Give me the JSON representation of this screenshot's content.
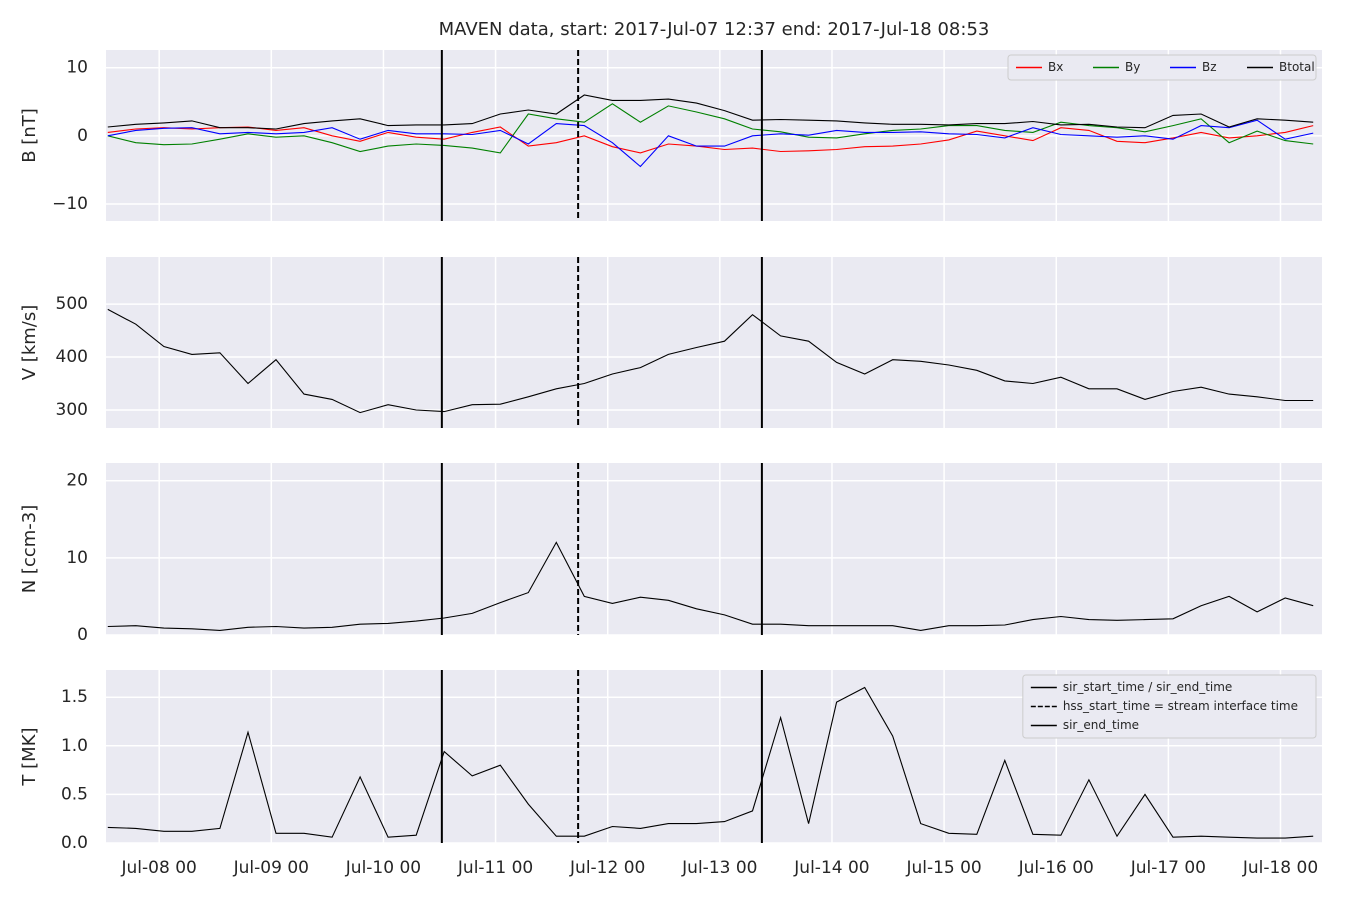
{
  "chart_data": {
    "type": "line",
    "title": "MAVEN data, start: 2017-Jul-07 12:37  end: 2017-Jul-18 08:53",
    "xlim": [
      "2017-07-07 12:37",
      "2017-07-18 08:53"
    ],
    "xticks": [
      {
        "value": "2017-07-08 00:00",
        "label": "Jul-08 00"
      },
      {
        "value": "2017-07-09 00:00",
        "label": "Jul-09 00"
      },
      {
        "value": "2017-07-10 00:00",
        "label": "Jul-10 00"
      },
      {
        "value": "2017-07-11 00:00",
        "label": "Jul-11 00"
      },
      {
        "value": "2017-07-12 00:00",
        "label": "Jul-12 00"
      },
      {
        "value": "2017-07-13 00:00",
        "label": "Jul-13 00"
      },
      {
        "value": "2017-07-14 00:00",
        "label": "Jul-14 00"
      },
      {
        "value": "2017-07-15 00:00",
        "label": "Jul-15 00"
      },
      {
        "value": "2017-07-16 00:00",
        "label": "Jul-16 00"
      },
      {
        "value": "2017-07-17 00:00",
        "label": "Jul-17 00"
      },
      {
        "value": "2017-07-18 00:00",
        "label": "Jul-18 00"
      }
    ],
    "grid": true,
    "x": [
      "2017-07-07 13:00",
      "2017-07-07 19:00",
      "2017-07-08 01:00",
      "2017-07-08 07:00",
      "2017-07-08 13:00",
      "2017-07-08 19:00",
      "2017-07-09 01:00",
      "2017-07-09 07:00",
      "2017-07-09 13:00",
      "2017-07-09 19:00",
      "2017-07-10 01:00",
      "2017-07-10 07:00",
      "2017-07-10 13:00",
      "2017-07-10 19:00",
      "2017-07-11 01:00",
      "2017-07-11 07:00",
      "2017-07-11 13:00",
      "2017-07-11 19:00",
      "2017-07-12 01:00",
      "2017-07-12 07:00",
      "2017-07-12 13:00",
      "2017-07-12 19:00",
      "2017-07-13 01:00",
      "2017-07-13 07:00",
      "2017-07-13 13:00",
      "2017-07-13 19:00",
      "2017-07-14 01:00",
      "2017-07-14 07:00",
      "2017-07-14 13:00",
      "2017-07-14 19:00",
      "2017-07-15 01:00",
      "2017-07-15 07:00",
      "2017-07-15 13:00",
      "2017-07-15 19:00",
      "2017-07-16 01:00",
      "2017-07-16 07:00",
      "2017-07-16 13:00",
      "2017-07-16 19:00",
      "2017-07-17 01:00",
      "2017-07-17 07:00",
      "2017-07-17 13:00",
      "2017-07-17 19:00",
      "2017-07-18 01:00",
      "2017-07-18 07:00"
    ],
    "vlines": [
      {
        "label": "sir_start_time / sir_end_time",
        "x": "2017-07-10 12:30",
        "color": "#000000",
        "dashed": false
      },
      {
        "label": "hss_start_time = stream interface time",
        "x": "2017-07-11 17:40",
        "color": "#000000",
        "dashed": true
      },
      {
        "label": "sir_end_time",
        "x": "2017-07-13 09:00",
        "color": "#000000",
        "dashed": false
      }
    ],
    "panels": [
      {
        "ylabel": "B [nT]",
        "ylim": [
          -12.5,
          12.6
        ],
        "yticks": [
          {
            "value": -10,
            "label": "−10"
          },
          0,
          10
        ],
        "legend": "upper right",
        "legend_columns": 4,
        "series": [
          {
            "name": "Bx",
            "color": "#ff0000",
            "values": [
              0.5,
              1,
              1.2,
              1,
              1.2,
              1.3,
              0.8,
              1.2,
              0,
              -0.8,
              0.5,
              -0.2,
              -0.5,
              0.5,
              1.3,
              -1.5,
              -1,
              0,
              -1.6,
              -2.5,
              -1.2,
              -1.5,
              -2,
              -1.8,
              -2.3,
              -2.2,
              -2,
              -1.6,
              -1.5,
              -1.2,
              -0.6,
              0.7,
              0,
              -0.7,
              1.2,
              0.8,
              -0.8,
              -1,
              -0.3,
              0.5,
              -0.3,
              0,
              0.5,
              1.5
            ]
          },
          {
            "name": "By",
            "color": "#008000",
            "values": [
              0,
              -1,
              -1.3,
              -1.2,
              -0.5,
              0.3,
              -0.2,
              0,
              -1,
              -2.3,
              -1.5,
              -1.2,
              -1.4,
              -1.8,
              -2.5,
              3.2,
              2.5,
              2,
              4.7,
              2,
              4.4,
              3.5,
              2.5,
              1,
              0.6,
              -0.2,
              -0.3,
              0.3,
              0.8,
              1,
              1.5,
              1.5,
              0.8,
              0.5,
              2,
              1.5,
              1.2,
              0.6,
              1.5,
              2.5,
              -1,
              0.7,
              -0.7,
              -1.2
            ]
          },
          {
            "name": "Bz",
            "color": "#0000ff",
            "values": [
              0,
              0.8,
              1.1,
              1.2,
              0.3,
              0.5,
              0.3,
              0.5,
              1.2,
              -0.5,
              0.8,
              0.3,
              0.3,
              0.2,
              0.8,
              -1.2,
              1.8,
              1.5,
              -1,
              -4.5,
              0,
              -1.5,
              -1.5,
              0,
              0.3,
              0.1,
              0.8,
              0.5,
              0.5,
              0.6,
              0.3,
              0.2,
              -0.3,
              1.2,
              0.2,
              0,
              -0.2,
              0,
              -0.5,
              1.5,
              1.2,
              2.3,
              -0.5,
              0.4
            ]
          },
          {
            "name": "Btotal",
            "color": "#000000",
            "values": [
              1.3,
              1.7,
              1.9,
              2.2,
              1.2,
              1.2,
              1,
              1.8,
              2.2,
              2.5,
              1.5,
              1.6,
              1.6,
              1.8,
              3.2,
              3.8,
              3.2,
              6,
              5.2,
              5.2,
              5.4,
              4.8,
              3.7,
              2.3,
              2.4,
              2.3,
              2.2,
              1.9,
              1.7,
              1.7,
              1.6,
              1.8,
              1.8,
              2.1,
              1.6,
              1.7,
              1.3,
              1.2,
              3,
              3.2,
              1.3,
              2.5,
              2.3,
              2
            ]
          }
        ]
      },
      {
        "ylabel": "V [km/s]",
        "ylim": [
          266,
          589
        ],
        "yticks": [
          300,
          400,
          500
        ],
        "series": [
          {
            "color": "#000000",
            "values": [
              490,
              462,
              420,
              405,
              408,
              350,
              395,
              330,
              320,
              295,
              310,
              300,
              297,
              310,
              311,
              325,
              340,
              350,
              368,
              380,
              405,
              418,
              430,
              480,
              440,
              430,
              390,
              368,
              395,
              392,
              385,
              375,
              355,
              350,
              362,
              340,
              340,
              320,
              335,
              343,
              330,
              325,
              318,
              318
            ]
          }
        ]
      },
      {
        "ylabel": "N [ccm-3]",
        "ylim": [
          0,
          22.3
        ],
        "yticks": [
          0,
          10,
          20
        ],
        "series": [
          {
            "color": "#000000",
            "values": [
              1.1,
              1.2,
              0.9,
              0.8,
              0.6,
              1,
              1.1,
              0.9,
              1,
              1.4,
              1.5,
              1.8,
              2.2,
              2.8,
              4.2,
              5.5,
              12,
              5,
              4.1,
              4.9,
              4.5,
              3.4,
              2.6,
              1.4,
              1.4,
              1.2,
              1.2,
              1.2,
              1.2,
              0.6,
              1.2,
              1.2,
              1.3,
              2,
              2.4,
              2,
              1.9,
              2,
              2.1,
              3.8,
              5,
              3,
              4.8,
              3.8
            ]
          }
        ]
      },
      {
        "ylabel": "T [MK]",
        "ylim": [
          0,
          1.78
        ],
        "yticks": [
          {
            "value": 0,
            "label": "0.0"
          },
          0.5,
          {
            "value": 1,
            "label": "1.0"
          },
          1.5
        ],
        "legend": "upper right",
        "legend_source": "vlines",
        "series": [
          {
            "color": "#000000",
            "values": [
              0.16,
              0.15,
              0.12,
              0.12,
              0.15,
              1.14,
              0.1,
              0.1,
              0.06,
              0.68,
              0.06,
              0.08,
              0.94,
              0.69,
              0.8,
              0.4,
              0.07,
              0.07,
              0.17,
              0.15,
              0.2,
              0.2,
              0.22,
              0.33,
              1.29,
              0.2,
              1.45,
              1.6,
              1.1,
              0.2,
              0.1,
              0.09,
              0.85,
              0.09,
              0.08,
              0.65,
              0.07,
              0.5,
              0.06,
              0.07,
              0.06,
              0.05,
              0.05,
              0.07
            ]
          }
        ]
      }
    ]
  }
}
